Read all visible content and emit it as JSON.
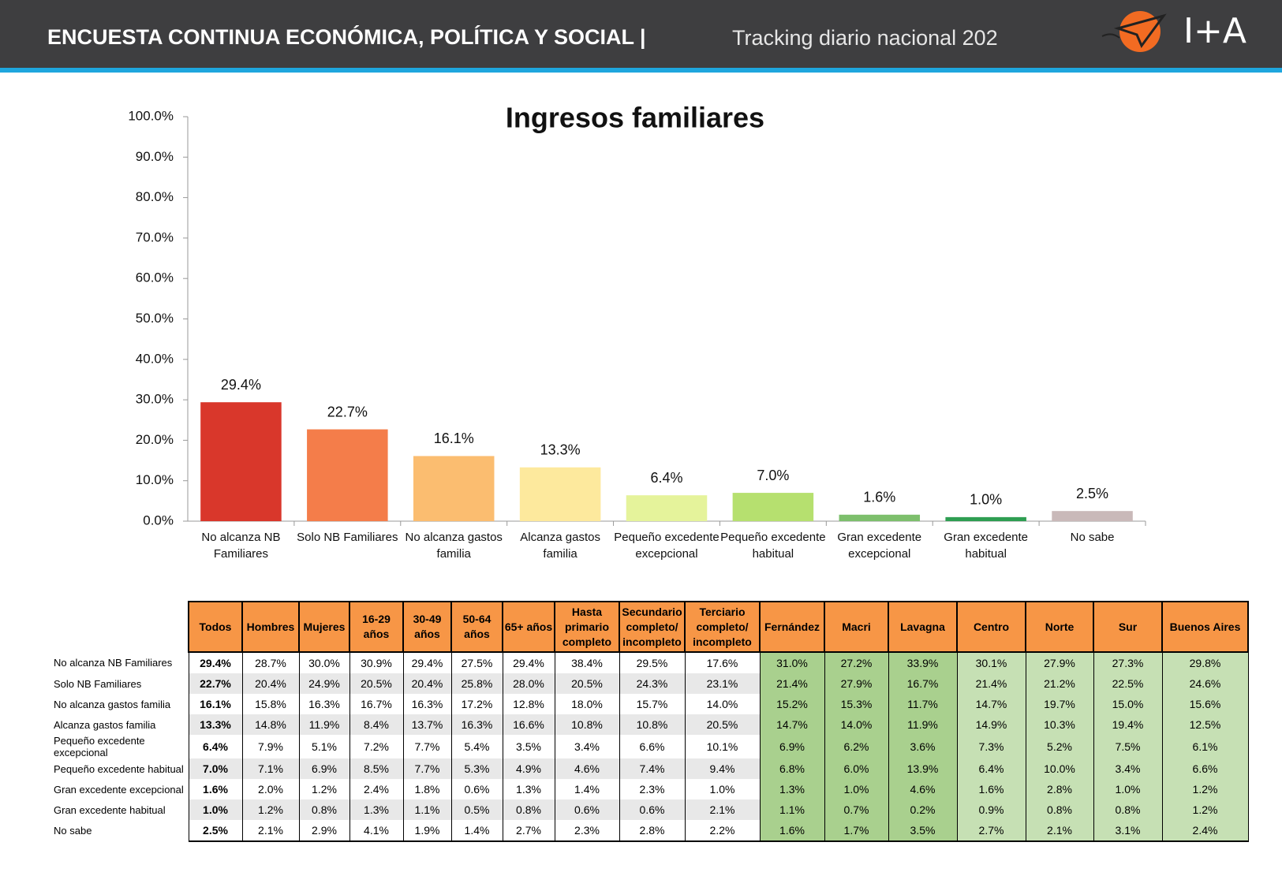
{
  "header": {
    "title": "ENCUESTA CONTINUA ECONÓMICA, POLÍTICA Y SOCIAL |",
    "subtitle": "Tracking diario nacional 202",
    "logo": "I+A"
  },
  "chart_data": {
    "type": "bar",
    "title": "Ingresos familiares",
    "categories": [
      "No alcanza NB Familiares",
      "Solo NB Familiares",
      "No alcanza gastos familia",
      "Alcanza gastos familia",
      "Pequeño excedente excepcional",
      "Pequeño excedente habitual",
      "Gran excedente excepcional",
      "Gran excedente habitual",
      "No sabe"
    ],
    "values": [
      29.4,
      22.7,
      16.1,
      13.3,
      6.4,
      7.0,
      1.6,
      1.0,
      2.5
    ],
    "value_labels": [
      "29.4%",
      "22.7%",
      "16.1%",
      "13.3%",
      "6.4%",
      "7.0%",
      "1.6%",
      "1.0%",
      "2.5%"
    ],
    "colors": [
      "#d9372b",
      "#f47d4a",
      "#fbbd70",
      "#fde99d",
      "#e5f39b",
      "#b6e06f",
      "#7dbf6c",
      "#2e9e52",
      "#c9b9b9"
    ],
    "ylim": [
      0,
      100
    ],
    "yticks": [
      {
        "value": 0,
        "label": "0.0%"
      },
      {
        "value": 10,
        "label": "10.0%"
      },
      {
        "value": 20,
        "label": "20.0%"
      },
      {
        "value": 30,
        "label": "30.0%"
      },
      {
        "value": 40,
        "label": "40.0%"
      },
      {
        "value": 50,
        "label": "50.0%"
      },
      {
        "value": 60,
        "label": "60.0%"
      },
      {
        "value": 70,
        "label": "70.0%"
      },
      {
        "value": 80,
        "label": "80.0%"
      },
      {
        "value": 90,
        "label": "90.0%"
      },
      {
        "value": 100,
        "label": "100.0%"
      }
    ]
  },
  "table": {
    "columns": [
      "Todos",
      "Hombres",
      "Mujeres",
      "16-29 años",
      "30-49 años",
      "50-64 años",
      "65+ años",
      "Hasta primario completo",
      "Secundario completo/ incompleto",
      "Terciario completo/ incompleto",
      "Fernández",
      "Macri",
      "Lavagna",
      "Centro",
      "Norte",
      "Sur",
      "Buenos Aires"
    ],
    "rows": [
      {
        "label": "No alcanza NB Familiares",
        "cells": [
          "29.4%",
          "28.7%",
          "30.0%",
          "30.9%",
          "29.4%",
          "27.5%",
          "29.4%",
          "38.4%",
          "29.5%",
          "17.6%",
          "31.0%",
          "27.2%",
          "33.9%",
          "30.1%",
          "27.9%",
          "27.3%",
          "29.8%"
        ]
      },
      {
        "label": "Solo NB Familiares",
        "cells": [
          "22.7%",
          "20.4%",
          "24.9%",
          "20.5%",
          "20.4%",
          "25.8%",
          "28.0%",
          "20.5%",
          "24.3%",
          "23.1%",
          "21.4%",
          "27.9%",
          "16.7%",
          "21.4%",
          "21.2%",
          "22.5%",
          "24.6%"
        ]
      },
      {
        "label": "No alcanza gastos familia",
        "cells": [
          "16.1%",
          "15.8%",
          "16.3%",
          "16.7%",
          "16.3%",
          "17.2%",
          "12.8%",
          "18.0%",
          "15.7%",
          "14.0%",
          "15.2%",
          "15.3%",
          "11.7%",
          "14.7%",
          "19.7%",
          "15.0%",
          "15.6%"
        ]
      },
      {
        "label": "Alcanza gastos familia",
        "cells": [
          "13.3%",
          "14.8%",
          "11.9%",
          "8.4%",
          "13.7%",
          "16.3%",
          "16.6%",
          "10.8%",
          "10.8%",
          "20.5%",
          "14.7%",
          "14.0%",
          "11.9%",
          "14.9%",
          "10.3%",
          "19.4%",
          "12.5%"
        ]
      },
      {
        "label": "Pequeño excedente excepcional",
        "cells": [
          "6.4%",
          "7.9%",
          "5.1%",
          "7.2%",
          "7.7%",
          "5.4%",
          "3.5%",
          "3.4%",
          "6.6%",
          "10.1%",
          "6.9%",
          "6.2%",
          "3.6%",
          "7.3%",
          "5.2%",
          "7.5%",
          "6.1%"
        ]
      },
      {
        "label": "Pequeño excedente habitual",
        "cells": [
          "7.0%",
          "7.1%",
          "6.9%",
          "8.5%",
          "7.7%",
          "5.3%",
          "4.9%",
          "4.6%",
          "7.4%",
          "9.4%",
          "6.8%",
          "6.0%",
          "13.9%",
          "6.4%",
          "10.0%",
          "3.4%",
          "6.6%"
        ]
      },
      {
        "label": "Gran excedente excepcional",
        "cells": [
          "1.6%",
          "2.0%",
          "1.2%",
          "2.4%",
          "1.8%",
          "0.6%",
          "1.3%",
          "1.4%",
          "2.3%",
          "1.0%",
          "1.3%",
          "1.0%",
          "4.6%",
          "1.6%",
          "2.8%",
          "1.0%",
          "1.2%"
        ]
      },
      {
        "label": "Gran excedente habitual",
        "cells": [
          "1.0%",
          "1.2%",
          "0.8%",
          "1.3%",
          "1.1%",
          "0.5%",
          "0.8%",
          "0.6%",
          "0.6%",
          "2.1%",
          "1.1%",
          "0.7%",
          "0.2%",
          "0.9%",
          "0.8%",
          "0.8%",
          "1.2%"
        ]
      },
      {
        "label": "No sabe",
        "cells": [
          "2.5%",
          "2.1%",
          "2.9%",
          "4.1%",
          "1.9%",
          "1.4%",
          "2.7%",
          "2.3%",
          "2.8%",
          "2.2%",
          "1.6%",
          "1.7%",
          "3.5%",
          "2.7%",
          "2.1%",
          "3.1%",
          "2.4%"
        ]
      }
    ]
  }
}
